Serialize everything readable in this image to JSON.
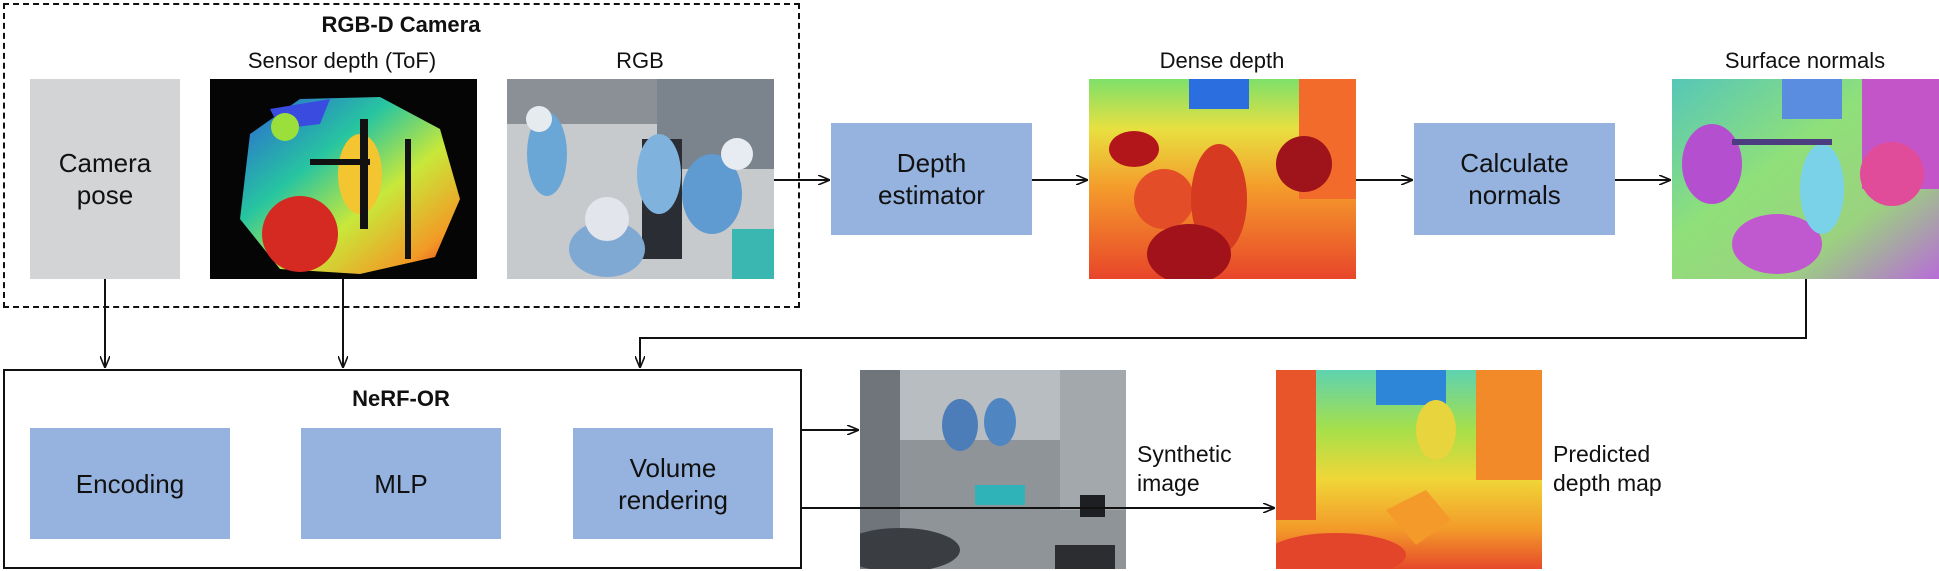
{
  "rgbd": {
    "title": "RGB-D Camera",
    "camera_pose": "Camera\npose",
    "sensor_depth_label": "Sensor depth (ToF)",
    "rgb_label": "RGB"
  },
  "pipeline": {
    "depth_estimator": "Depth\nestimator",
    "dense_depth_label": "Dense depth",
    "calculate_normals": "Calculate\nnormals",
    "surface_normals_label": "Surface normals"
  },
  "nerf": {
    "title": "NeRF-OR",
    "encoding": "Encoding",
    "mlp": "MLP",
    "volume_rendering": "Volume\nrendering"
  },
  "outputs": {
    "synthetic_image": "Synthetic\nimage",
    "predicted_depth": "Predicted\ndepth map"
  },
  "colors": {
    "block_blue": "#95b3de",
    "block_grey": "#d3d4d6",
    "line": "#000000"
  }
}
